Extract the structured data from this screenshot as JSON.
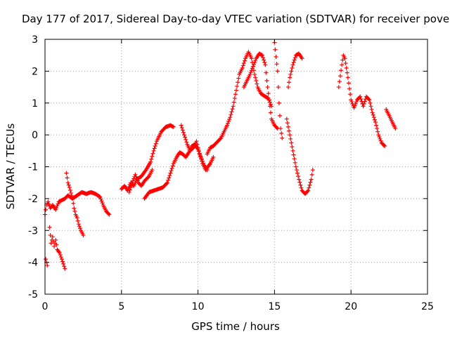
{
  "chart_data": {
    "type": "scatter",
    "title": "Day 177 of 2017, Sidereal Day-to-day VTEC variation (SDTVAR) for receiver pove",
    "xlabel": "GPS time / hours",
    "ylabel": "SDTVAR / TECUs",
    "xlim": [
      0,
      25
    ],
    "ylim": [
      -5,
      3
    ],
    "x_ticks": [
      0,
      5,
      10,
      15,
      20,
      25
    ],
    "y_ticks": [
      -5,
      -4,
      -3,
      -2,
      -1,
      0,
      1,
      2,
      3
    ],
    "grid": true,
    "marker": "+",
    "colors": {
      "marker": "#ff0000",
      "grid": "#a0a0a0",
      "axis": "#000000"
    },
    "series": [
      {
        "name": "trace-a",
        "points": [
          [
            0.0,
            -2.5
          ],
          [
            0.1,
            -2.2
          ],
          [
            0.2,
            -2.1
          ],
          [
            0.35,
            -2.3
          ],
          [
            0.5,
            -2.2
          ],
          [
            0.7,
            -2.35
          ],
          [
            0.9,
            -2.1
          ],
          [
            1.1,
            -2.05
          ],
          [
            1.3,
            -2.0
          ],
          [
            1.5,
            -1.9
          ],
          [
            1.8,
            -2.0
          ],
          [
            2.1,
            -1.9
          ],
          [
            2.4,
            -1.8
          ],
          [
            2.7,
            -1.85
          ],
          [
            3.0,
            -1.8
          ],
          [
            3.3,
            -1.85
          ],
          [
            3.6,
            -1.95
          ],
          [
            3.8,
            -2.2
          ],
          [
            4.0,
            -2.4
          ],
          [
            4.2,
            -2.5
          ]
        ]
      },
      {
        "name": "trace-b",
        "points": [
          [
            0.05,
            -3.9
          ],
          [
            0.15,
            -4.1
          ]
        ]
      },
      {
        "name": "trace-c",
        "points": [
          [
            0.3,
            -2.9
          ],
          [
            0.4,
            -3.4
          ],
          [
            0.5,
            -3.2
          ],
          [
            0.6,
            -3.5
          ],
          [
            0.7,
            -3.3
          ],
          [
            0.8,
            -3.6
          ],
          [
            0.95,
            -3.7
          ],
          [
            1.1,
            -3.9
          ],
          [
            1.3,
            -4.2
          ]
        ]
      },
      {
        "name": "trace-d",
        "points": [
          [
            1.4,
            -1.2
          ],
          [
            1.5,
            -1.5
          ],
          [
            1.6,
            -1.65
          ],
          [
            1.8,
            -2.0
          ],
          [
            1.9,
            -2.3
          ],
          [
            2.0,
            -2.5
          ],
          [
            2.1,
            -2.6
          ],
          [
            2.2,
            -2.8
          ],
          [
            2.35,
            -3.0
          ],
          [
            2.5,
            -3.15
          ]
        ]
      },
      {
        "name": "trace-e",
        "points": [
          [
            5.0,
            -1.7
          ],
          [
            5.2,
            -1.6
          ],
          [
            5.4,
            -1.75
          ],
          [
            5.6,
            -1.5
          ],
          [
            5.8,
            -1.6
          ],
          [
            6.0,
            -1.4
          ],
          [
            6.3,
            -1.3
          ],
          [
            6.6,
            -1.1
          ],
          [
            6.9,
            -0.85
          ],
          [
            7.1,
            -0.5
          ],
          [
            7.3,
            -0.2
          ],
          [
            7.6,
            0.1
          ],
          [
            7.9,
            0.25
          ],
          [
            8.2,
            0.3
          ],
          [
            8.4,
            0.25
          ]
        ]
      },
      {
        "name": "trace-f",
        "points": [
          [
            5.5,
            -1.8
          ],
          [
            5.7,
            -1.5
          ],
          [
            5.9,
            -1.25
          ],
          [
            6.1,
            -1.5
          ],
          [
            6.3,
            -1.6
          ],
          [
            6.5,
            -1.45
          ],
          [
            6.8,
            -1.3
          ],
          [
            7.0,
            -1.1
          ]
        ]
      },
      {
        "name": "trace-g",
        "points": [
          [
            6.5,
            -2.0
          ],
          [
            6.8,
            -1.8
          ],
          [
            7.1,
            -1.75
          ],
          [
            7.4,
            -1.7
          ],
          [
            7.7,
            -1.65
          ],
          [
            8.0,
            -1.5
          ],
          [
            8.2,
            -1.2
          ],
          [
            8.4,
            -0.9
          ],
          [
            8.6,
            -0.7
          ],
          [
            8.8,
            -0.55
          ],
          [
            9.0,
            -0.6
          ],
          [
            9.2,
            -0.7
          ],
          [
            9.4,
            -0.55
          ],
          [
            9.6,
            -0.35
          ],
          [
            9.8,
            -0.3
          ],
          [
            10.0,
            -0.45
          ],
          [
            10.2,
            -0.7
          ],
          [
            10.4,
            -0.95
          ],
          [
            10.6,
            -1.1
          ]
        ]
      },
      {
        "name": "trace-h",
        "points": [
          [
            8.9,
            0.3
          ],
          [
            9.1,
            0.0
          ],
          [
            9.3,
            -0.3
          ],
          [
            9.5,
            -0.5
          ],
          [
            9.7,
            -0.4
          ],
          [
            9.9,
            -0.2
          ],
          [
            10.1,
            -0.6
          ],
          [
            10.3,
            -0.9
          ],
          [
            10.5,
            -1.1
          ],
          [
            10.8,
            -0.9
          ],
          [
            11.0,
            -0.7
          ]
        ]
      },
      {
        "name": "trace-i",
        "points": [
          [
            10.6,
            -0.6
          ],
          [
            10.8,
            -0.4
          ],
          [
            11.0,
            -0.35
          ],
          [
            11.3,
            -0.2
          ],
          [
            11.5,
            -0.1
          ],
          [
            11.7,
            0.1
          ],
          [
            11.9,
            0.3
          ],
          [
            12.1,
            0.55
          ],
          [
            12.3,
            0.9
          ],
          [
            12.5,
            1.4
          ],
          [
            12.7,
            1.9
          ],
          [
            12.9,
            2.1
          ],
          [
            13.1,
            2.4
          ],
          [
            13.3,
            2.6
          ],
          [
            13.5,
            2.4
          ],
          [
            13.7,
            1.9
          ],
          [
            13.9,
            1.5
          ],
          [
            14.1,
            1.3
          ],
          [
            14.4,
            1.2
          ],
          [
            14.6,
            1.15
          ],
          [
            14.8,
            0.9
          ]
        ]
      },
      {
        "name": "trace-j",
        "points": [
          [
            13.0,
            1.5
          ],
          [
            13.2,
            1.7
          ],
          [
            13.4,
            1.9
          ],
          [
            13.6,
            2.15
          ],
          [
            13.8,
            2.4
          ],
          [
            14.0,
            2.55
          ],
          [
            14.2,
            2.5
          ],
          [
            14.4,
            2.2
          ],
          [
            14.5,
            1.7
          ],
          [
            14.6,
            1.3
          ],
          [
            14.8,
            0.5
          ],
          [
            15.0,
            0.3
          ],
          [
            15.2,
            0.2
          ]
        ]
      },
      {
        "name": "trace-k",
        "points": [
          [
            15.0,
            2.9
          ],
          [
            15.2,
            2.0
          ],
          [
            15.3,
            1.0
          ],
          [
            15.4,
            0.2
          ],
          [
            15.5,
            -0.1
          ]
        ]
      },
      {
        "name": "trace-l",
        "points": [
          [
            15.9,
            1.5
          ],
          [
            16.0,
            1.8
          ],
          [
            16.2,
            2.2
          ],
          [
            16.4,
            2.5
          ],
          [
            16.6,
            2.55
          ],
          [
            16.8,
            2.4
          ]
        ]
      },
      {
        "name": "trace-m",
        "points": [
          [
            15.8,
            0.5
          ],
          [
            16.0,
            0.0
          ],
          [
            16.2,
            -0.5
          ],
          [
            16.4,
            -1.0
          ],
          [
            16.6,
            -1.4
          ],
          [
            16.8,
            -1.75
          ],
          [
            17.0,
            -1.85
          ],
          [
            17.2,
            -1.75
          ],
          [
            17.4,
            -1.4
          ],
          [
            17.5,
            -1.1
          ]
        ]
      },
      {
        "name": "trace-n",
        "points": [
          [
            19.2,
            1.5
          ],
          [
            19.4,
            2.2
          ],
          [
            19.5,
            2.5
          ],
          [
            19.6,
            2.4
          ],
          [
            19.8,
            1.8
          ],
          [
            20.0,
            1.1
          ],
          [
            20.2,
            0.85
          ],
          [
            20.4,
            1.1
          ],
          [
            20.6,
            1.2
          ],
          [
            20.8,
            0.9
          ],
          [
            21.0,
            1.2
          ],
          [
            21.2,
            1.1
          ],
          [
            21.4,
            0.7
          ],
          [
            21.6,
            0.4
          ],
          [
            21.8,
            0.0
          ],
          [
            22.0,
            -0.25
          ],
          [
            22.2,
            -0.35
          ]
        ]
      },
      {
        "name": "trace-o",
        "points": [
          [
            22.3,
            0.8
          ],
          [
            22.5,
            0.6
          ],
          [
            22.7,
            0.4
          ],
          [
            22.9,
            0.2
          ]
        ]
      }
    ]
  }
}
